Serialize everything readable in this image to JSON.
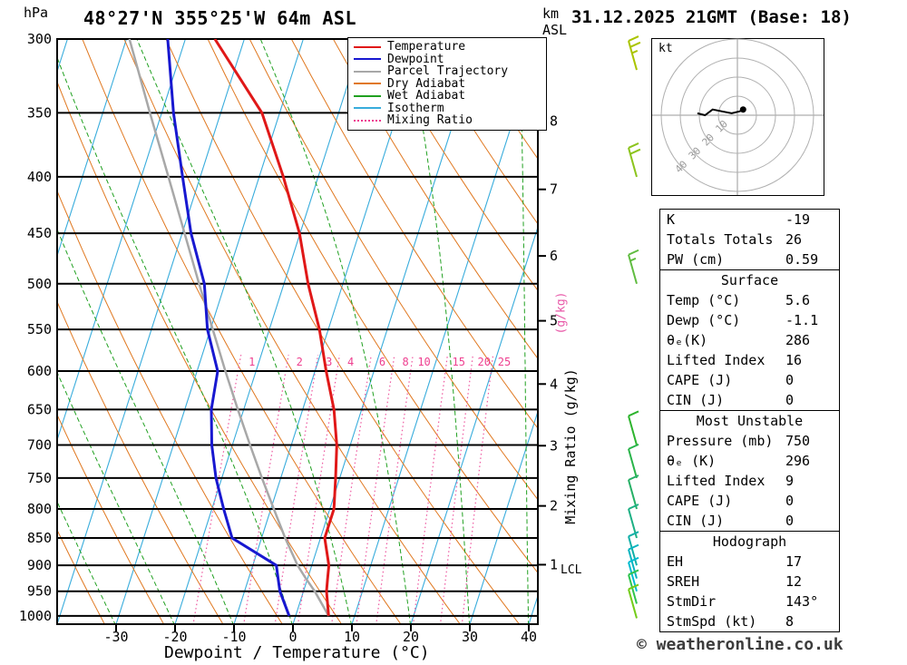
{
  "header": {
    "title": "48°27'N 355°25'W 64m ASL",
    "date": "31.12.2025 21GMT (Base: 18)",
    "hpa_label": "hPa",
    "km_label": "km",
    "asl_label": "ASL"
  },
  "axes": {
    "xlabel": "Dewpoint / Temperature (°C)",
    "pressures": [
      300,
      350,
      400,
      450,
      500,
      550,
      600,
      650,
      700,
      750,
      800,
      850,
      900,
      950,
      1000
    ],
    "temps": [
      -30,
      -20,
      -10,
      0,
      10,
      20,
      30,
      40
    ],
    "km": [
      8,
      7,
      6,
      5,
      4,
      3,
      2,
      1
    ],
    "lcl_label": "LCL",
    "mixing_axis_label": "Mixing Ratio (g/kg)",
    "mixing_axis_label_pink": "(g/kg)"
  },
  "legend": {
    "items": [
      {
        "label": "Temperature",
        "color": "#e01818",
        "style": "solid"
      },
      {
        "label": "Dewpoint",
        "color": "#1818d0",
        "style": "solid"
      },
      {
        "label": "Parcel Trajectory",
        "color": "#a8a8a8",
        "style": "solid"
      },
      {
        "label": "Dry Adiabat",
        "color": "#e07820",
        "style": "solid"
      },
      {
        "label": "Wet Adiabat",
        "color": "#20a020",
        "style": "solid"
      },
      {
        "label": "Isotherm",
        "color": "#38acdc",
        "style": "solid"
      },
      {
        "label": "Mixing Ratio",
        "color": "#ee3890",
        "style": "dotted"
      }
    ]
  },
  "hodograph": {
    "kt_label": "kt",
    "rings": [
      10,
      20,
      30,
      40
    ]
  },
  "table": {
    "sections": [
      {
        "header": null,
        "rows": [
          [
            "K",
            "-19"
          ],
          [
            "Totals Totals",
            "26"
          ],
          [
            "PW (cm)",
            "0.59"
          ]
        ]
      },
      {
        "header": "Surface",
        "rows": [
          [
            "Temp (°C)",
            "5.6"
          ],
          [
            "Dewp (°C)",
            "-1.1"
          ],
          [
            "θₑ(K)",
            "286"
          ],
          [
            "Lifted Index",
            "16"
          ],
          [
            "CAPE (J)",
            "0"
          ],
          [
            "CIN (J)",
            "0"
          ]
        ]
      },
      {
        "header": "Most Unstable",
        "rows": [
          [
            "Pressure (mb)",
            "750"
          ],
          [
            "θₑ (K)",
            "296"
          ],
          [
            "Lifted Index",
            "9"
          ],
          [
            "CAPE (J)",
            "0"
          ],
          [
            "CIN (J)",
            "0"
          ]
        ]
      },
      {
        "header": "Hodograph",
        "rows": [
          [
            "EH",
            "17"
          ],
          [
            "SREH",
            "12"
          ],
          [
            "StmDir",
            "143°"
          ],
          [
            "StmSpd (kt)",
            "8"
          ]
        ]
      }
    ]
  },
  "footer": {
    "copyright": "© weatheronline.co.uk"
  },
  "chart_data": {
    "type": "skewt_sounding",
    "title": "48°27'N 355°25'W 64m ASL",
    "valid": "31.12.2025 21GMT (Base: 18)",
    "pressure_range_hPa": [
      300,
      1020
    ],
    "temp_axis_range_C": [
      -40,
      45
    ],
    "pressure_hPa": [
      1000,
      950,
      925,
      900,
      850,
      800,
      750,
      700,
      650,
      600,
      550,
      500,
      450,
      400,
      350,
      300
    ],
    "temperature_C": [
      5.6,
      3.9,
      3.4,
      2.9,
      0.7,
      0.7,
      -0.7,
      -2.3,
      -4.7,
      -8.1,
      -11.5,
      -15.9,
      -20.1,
      -25.9,
      -33.0,
      -45.0
    ],
    "dewpoint_C": [
      -1.1,
      -4.0,
      -5.0,
      -6.0,
      -15.0,
      -18.0,
      -21.0,
      -23.5,
      -25.5,
      -26.5,
      -30.5,
      -33.5,
      -38.5,
      -43.0,
      -48.0,
      -53.0
    ],
    "parcel_C": [
      5.6,
      1.9,
      -0.3,
      -2.4,
      -6.0,
      -9.5,
      -13.2,
      -17.0,
      -21.0,
      -25.2,
      -29.6,
      -34.4,
      -39.6,
      -45.4,
      -52.0,
      -59.5
    ],
    "lcl_pressure_hPa": 910,
    "mixing_ratio_lines_gkg": [
      1,
      2,
      3,
      4,
      6,
      8,
      10,
      15,
      20,
      25
    ],
    "isotherm_step_C": 10,
    "dry_adiabat_step_K": 10,
    "wet_adiabat_step_C": 10,
    "surface": {
      "temp_C": 5.6,
      "dewp_C": -1.1,
      "theta_e_K": 286,
      "lifted_index": 16,
      "cape_J": 0,
      "cin_J": 0
    },
    "indices": {
      "K": -19,
      "totals_totals": 26,
      "pw_cm": 0.59,
      "most_unstable": {
        "pressure_mb": 750,
        "theta_e_K": 296,
        "lifted_index": 9,
        "cape_J": 0,
        "cin_J": 0
      },
      "EH": 17,
      "SREH": 12,
      "storm_dir_deg": 143,
      "storm_speed_kt": 8
    },
    "wind_barbs": [
      {
        "pressure": 320,
        "speed_kt": 25,
        "color": "#aac400"
      },
      {
        "pressure": 400,
        "speed_kt": 20,
        "color": "#8cc41e"
      },
      {
        "pressure": 500,
        "speed_kt": 15,
        "color": "#60bc40"
      },
      {
        "pressure": 700,
        "speed_kt": 10,
        "color": "#2eb42e"
      },
      {
        "pressure": 750,
        "speed_kt": 10,
        "color": "#2ab44a"
      },
      {
        "pressure": 800,
        "speed_kt": 10,
        "color": "#26b066"
      },
      {
        "pressure": 850,
        "speed_kt": 10,
        "color": "#1eb084"
      },
      {
        "pressure": 900,
        "speed_kt": 10,
        "color": "#12b0a8"
      },
      {
        "pressure": 925,
        "speed_kt": 10,
        "color": "#08b4c0"
      },
      {
        "pressure": 950,
        "speed_kt": 10,
        "color": "#02bcd0"
      },
      {
        "pressure": 975,
        "speed_kt": 10,
        "color": "#30c44e"
      },
      {
        "pressure": 1005,
        "speed_kt": 10,
        "color": "#74cc1a"
      }
    ],
    "hodograph_trace_kt": [
      [
        4,
        3
      ],
      [
        1,
        2
      ],
      [
        -3,
        1
      ],
      [
        -8,
        2
      ],
      [
        -13,
        3
      ],
      [
        -17,
        0
      ],
      [
        -21,
        1
      ]
    ],
    "hodograph_dot_kt": [
      3,
      3
    ]
  }
}
